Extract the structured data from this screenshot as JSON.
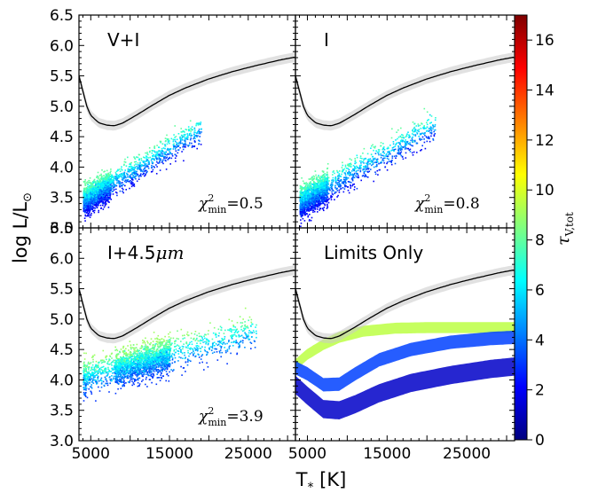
{
  "chart_data": {
    "type": "scatter",
    "xlabel": "T",
    "xlabel_sub": "*",
    "xlabel_unit": "[K]",
    "ylabel": "log L/L",
    "ylabel_sun": "⊙",
    "xlim": [
      3500,
      31000
    ],
    "ylim": [
      3.0,
      6.5
    ],
    "x_ticks": [
      5000,
      15000,
      25000
    ],
    "y_ticks": [
      3.0,
      3.5,
      4.0,
      4.5,
      5.0,
      5.5,
      6.0,
      6.5
    ],
    "colorbar": {
      "label": "τ",
      "label_sub": "V,tot",
      "range": [
        0,
        17
      ],
      "ticks": [
        0,
        2,
        4,
        6,
        8,
        10,
        12,
        14,
        16
      ]
    },
    "track": {
      "name": "stellar track",
      "x": [
        3500,
        4000,
        4500,
        5000,
        6000,
        7000,
        8000,
        9000,
        11000,
        13000,
        15000,
        17000,
        20000,
        23000,
        26000,
        29000,
        31000
      ],
      "y": [
        5.5,
        5.25,
        5.0,
        4.85,
        4.73,
        4.69,
        4.68,
        4.72,
        4.87,
        5.03,
        5.18,
        5.3,
        5.45,
        5.57,
        5.67,
        5.76,
        5.81
      ],
      "band_halfwidth": 0.08
    },
    "panels": [
      {
        "title": "V+I",
        "annotation": "=0.5",
        "chi_label": "χ",
        "chi_sup": "2",
        "chi_sub": "min",
        "scatter": {
          "x_range": [
            4000,
            19000
          ],
          "base_y": 3.45,
          "slope_per_1000K": 0.078,
          "spread": 0.22,
          "tau_range": [
            2,
            8
          ],
          "dense_x": [
            4000,
            7500
          ],
          "n": 2500
        }
      },
      {
        "title": "I",
        "annotation": "=0.8",
        "chi_label": "χ",
        "chi_sup": "2",
        "chi_sub": "min",
        "scatter": {
          "x_range": [
            4000,
            21000
          ],
          "base_y": 3.42,
          "slope_per_1000K": 0.075,
          "spread": 0.24,
          "tau_range": [
            2,
            8
          ],
          "dense_x": [
            4000,
            7500
          ],
          "n": 2500
        }
      },
      {
        "title": "I+4.5",
        "title_math": "μm",
        "annotation": "=3.9",
        "chi_label": "χ",
        "chi_sup": "2",
        "chi_sub": "min",
        "scatter": {
          "x_range": [
            4000,
            26000
          ],
          "base_y": 4.05,
          "slope_per_1000K": 0.035,
          "spread": 0.28,
          "tau_range": [
            3,
            9
          ],
          "dense_x": [
            8000,
            15000
          ],
          "n": 2500
        }
      },
      {
        "title": "Limits Only",
        "annotation": "",
        "bands": [
          {
            "tau": 9.5,
            "x": [
              3500,
              5000,
              7000,
              9000,
              12000,
              16000,
              20000,
              25000,
              31000
            ],
            "y": [
              4.25,
              4.42,
              4.58,
              4.7,
              4.8,
              4.85,
              4.86,
              4.86,
              4.86
            ],
            "halfwidth": 0.09
          },
          {
            "tau": 3.2,
            "x": [
              3500,
              5000,
              7000,
              9000,
              11000,
              14000,
              18000,
              23000,
              28000,
              31000
            ],
            "y": [
              4.2,
              4.1,
              3.92,
              3.93,
              4.1,
              4.33,
              4.5,
              4.62,
              4.68,
              4.7
            ],
            "halfwidth": 0.11
          },
          {
            "tau": 1.2,
            "x": [
              3500,
              5000,
              7000,
              9000,
              11000,
              14000,
              18000,
              23000,
              28000,
              31000
            ],
            "y": [
              3.92,
              3.74,
              3.52,
              3.5,
              3.6,
              3.78,
              3.95,
              4.08,
              4.18,
              4.22
            ],
            "halfwidth": 0.15
          }
        ]
      }
    ]
  }
}
